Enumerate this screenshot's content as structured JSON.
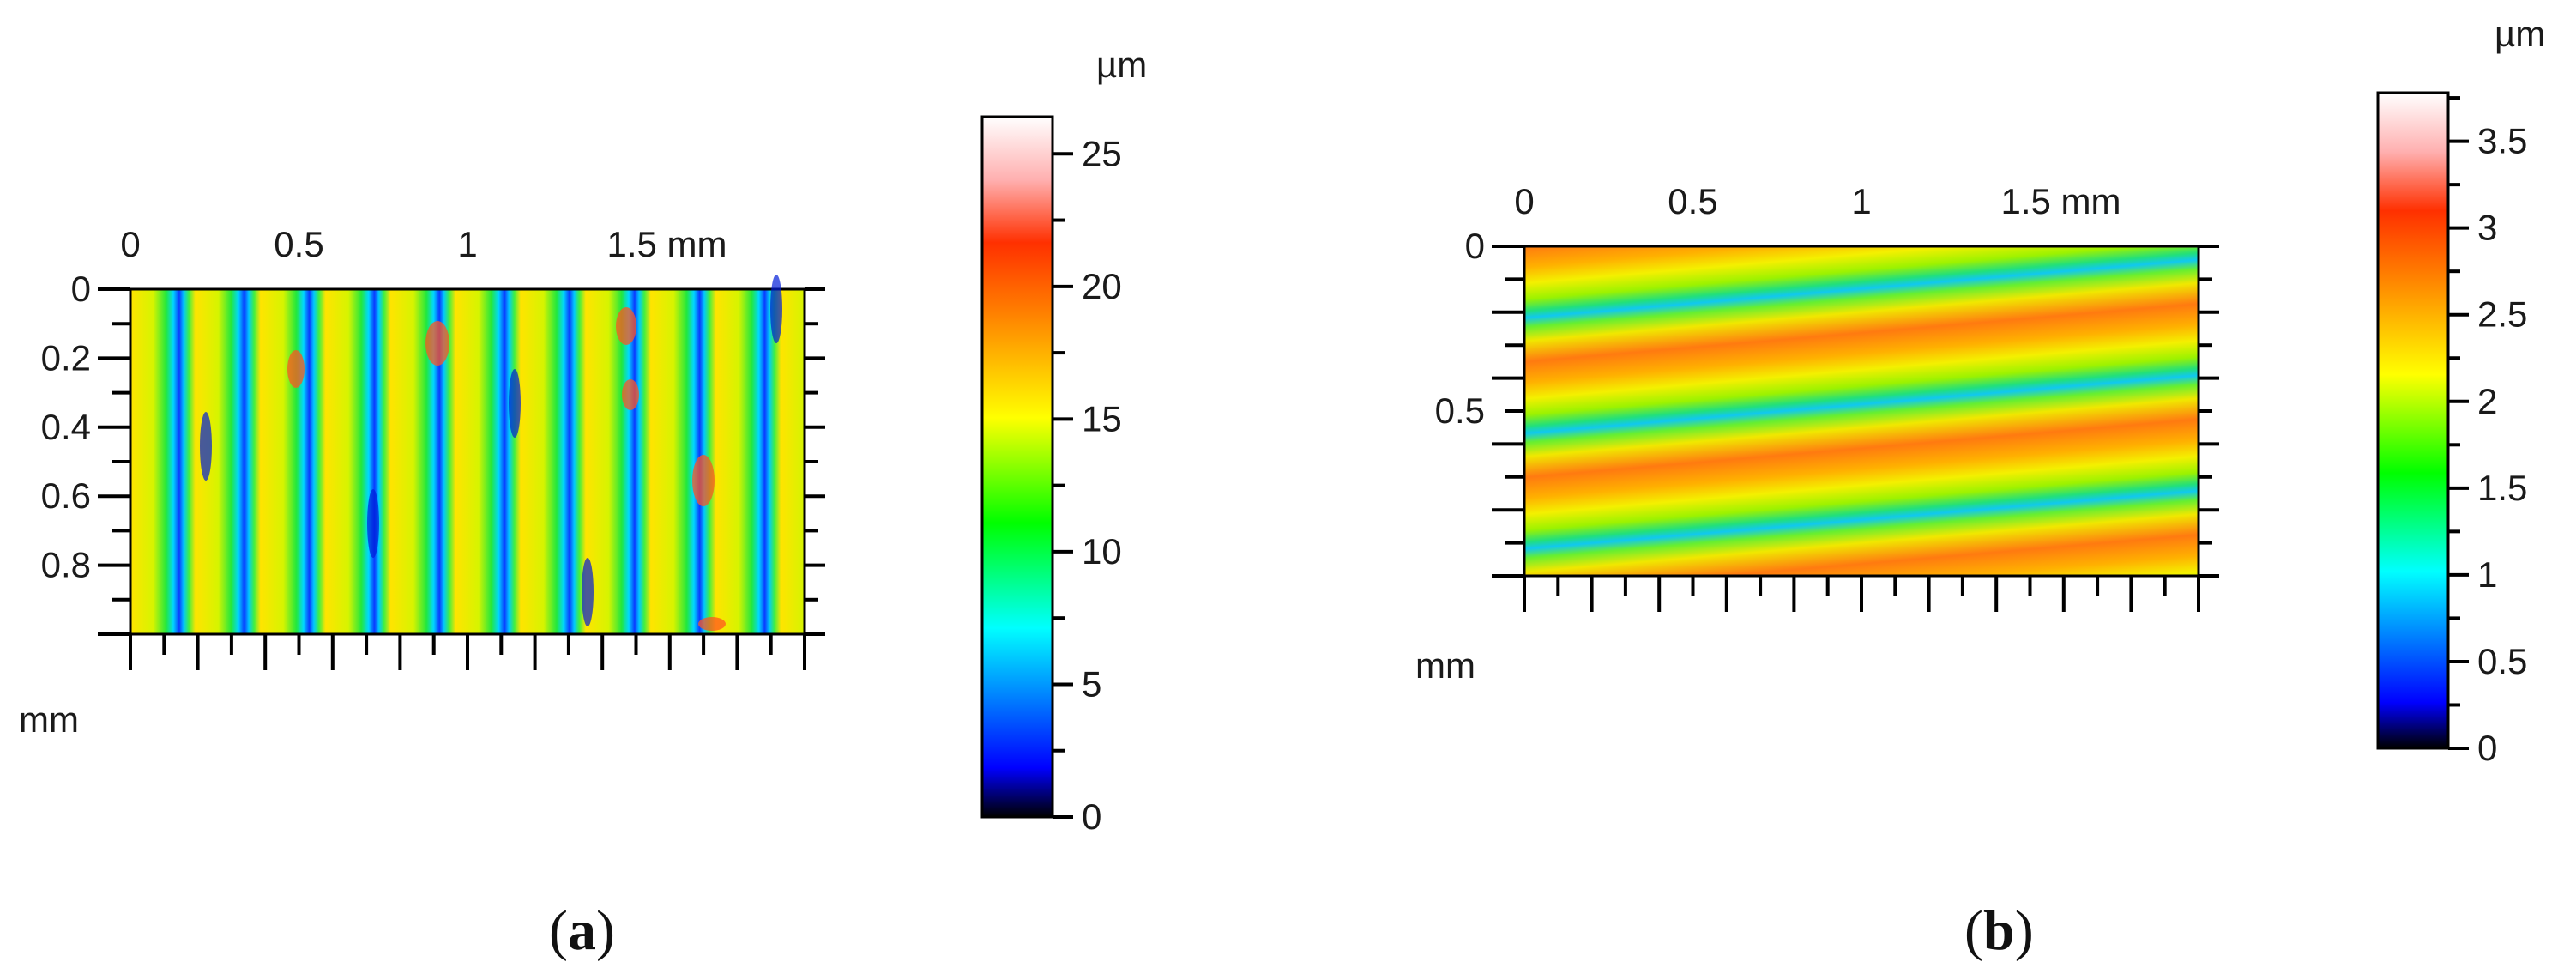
{
  "colormap": {
    "stops": [
      {
        "t": 0.0,
        "color": "#000000"
      },
      {
        "t": 0.07,
        "color": "#0000ff"
      },
      {
        "t": 0.27,
        "color": "#00ffff"
      },
      {
        "t": 0.42,
        "color": "#00ff00"
      },
      {
        "t": 0.57,
        "color": "#ffff00"
      },
      {
        "t": 0.72,
        "color": "#ff8000"
      },
      {
        "t": 0.82,
        "color": "#ff3000"
      },
      {
        "t": 0.91,
        "color": "#ffb0b0"
      },
      {
        "t": 1.0,
        "color": "#ffffff"
      }
    ],
    "frame_color": "#000000"
  },
  "chart_data": [
    {
      "type": "heatmap",
      "panel_label": "a",
      "x_unit": "mm",
      "y_unit": "mm",
      "x_ticks": [
        "0",
        "0.5",
        "1",
        "1.5 mm"
      ],
      "x_tick_values": [
        0,
        0.5,
        1,
        1.5
      ],
      "y_ticks": [
        "0",
        "0.2",
        "0.4",
        "0.6",
        "0.8"
      ],
      "y_tick_values": [
        0,
        0.2,
        0.4,
        0.6,
        0.8
      ],
      "xlim": [
        0,
        2.0
      ],
      "ylim": [
        0,
        1.0
      ],
      "colorbar": {
        "unit": "µm",
        "ticks": [
          "0",
          "5",
          "10",
          "15",
          "20",
          "25"
        ],
        "tick_values": [
          0,
          5,
          10,
          15,
          20,
          25
        ],
        "range": [
          0,
          26.4
        ]
      },
      "pattern": "vertical-grooves",
      "groove_period_mm": 0.2
    },
    {
      "type": "heatmap",
      "panel_label": "b",
      "x_unit": "mm",
      "y_unit": "mm",
      "x_ticks": [
        "0",
        "0.5",
        "1",
        "1.5 mm"
      ],
      "x_tick_values": [
        0,
        0.5,
        1,
        1.5
      ],
      "y_ticks": [
        "0",
        "0.5"
      ],
      "y_tick_values": [
        0,
        0.5
      ],
      "xlim": [
        0,
        2.0
      ],
      "ylim": [
        0,
        1.0
      ],
      "colorbar": {
        "unit": "µm",
        "ticks": [
          "0",
          "0.5",
          "1",
          "1.5",
          "2",
          "2.5",
          "3",
          "3.5"
        ],
        "tick_values": [
          0,
          0.5,
          1,
          1.5,
          2,
          2.5,
          3,
          3.5
        ],
        "range": [
          0,
          3.78
        ]
      },
      "pattern": "diagonal-bands"
    }
  ]
}
